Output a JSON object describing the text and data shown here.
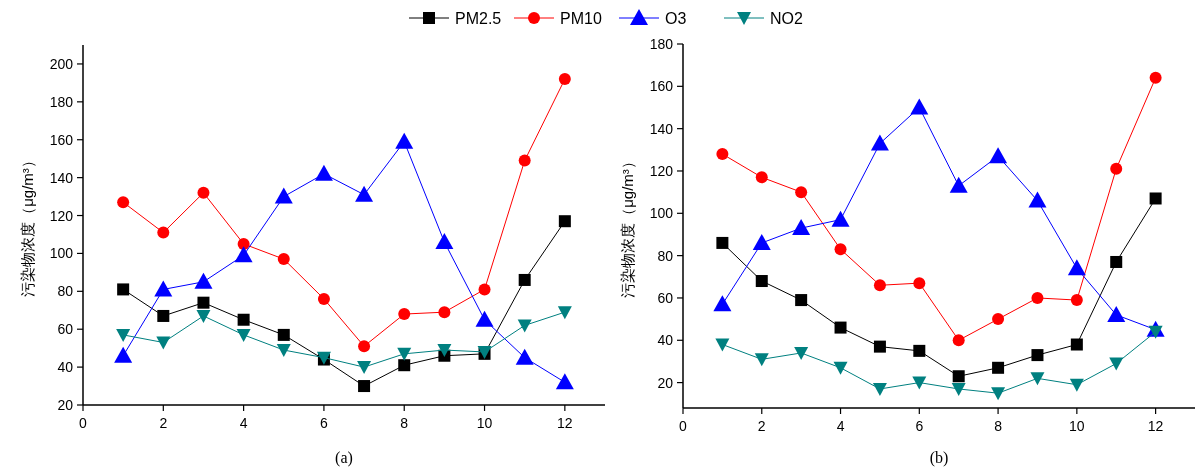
{
  "chart_data": [
    {
      "type": "line",
      "title": "(a)",
      "ylabel": "污染物浓度（μg/m³）",
      "x": [
        1,
        2,
        3,
        4,
        5,
        6,
        7,
        8,
        9,
        10,
        11,
        12
      ],
      "xlim": [
        0,
        13
      ],
      "xticks": [
        0,
        2,
        4,
        6,
        8,
        10,
        12
      ],
      "ylim": [
        20,
        210
      ],
      "yticks": [
        20,
        40,
        60,
        80,
        100,
        120,
        140,
        160,
        180,
        200
      ],
      "legend": "top",
      "series": [
        {
          "name": "PM2.5",
          "color": "#000000",
          "marker": "square",
          "values": [
            81,
            67,
            74,
            65,
            57,
            44,
            30,
            41,
            46,
            47,
            86,
            117
          ]
        },
        {
          "name": "PM10",
          "color": "#ff0000",
          "marker": "circle",
          "values": [
            127,
            111,
            132,
            105,
            97,
            76,
            51,
            68,
            69,
            81,
            149,
            192
          ]
        },
        {
          "name": "O3",
          "color": "#0000ff",
          "marker": "triangle",
          "values": [
            46,
            81,
            85,
            99,
            130,
            142,
            131,
            159,
            106,
            65,
            45,
            32
          ]
        },
        {
          "name": "NO2",
          "color": "#008080",
          "marker": "triangle_down",
          "values": [
            57,
            53,
            67,
            57,
            49,
            45,
            40,
            47,
            49,
            48,
            62,
            69
          ]
        }
      ]
    },
    {
      "type": "line",
      "title": "(b)",
      "ylabel": "污染物浓度（μg/m³）",
      "x": [
        1,
        2,
        3,
        4,
        5,
        6,
        7,
        8,
        9,
        10,
        11,
        12
      ],
      "xlim": [
        0,
        13
      ],
      "xticks": [
        0,
        2,
        4,
        6,
        8,
        10,
        12
      ],
      "ylim": [
        8,
        180
      ],
      "yticks": [
        20,
        40,
        60,
        80,
        100,
        120,
        140,
        160,
        180
      ],
      "series": [
        {
          "color": "#000000",
          "marker": "square",
          "values": [
            86,
            68,
            59,
            46,
            37,
            35,
            23,
            27,
            33,
            38,
            77,
            107
          ]
        },
        {
          "color": "#ff0000",
          "marker": "circle",
          "values": [
            128,
            117,
            110,
            83,
            66,
            67,
            40,
            50,
            60,
            59,
            121,
            164
          ]
        },
        {
          "color": "#0000ff",
          "marker": "triangle",
          "values": [
            57,
            86,
            93,
            97,
            133,
            150,
            113,
            127,
            106,
            74,
            52,
            45
          ]
        },
        {
          "color": "#008080",
          "marker": "triangle_down",
          "values": [
            38,
            31,
            34,
            27,
            17,
            20,
            17,
            15,
            22,
            19,
            29,
            44
          ]
        }
      ]
    }
  ]
}
